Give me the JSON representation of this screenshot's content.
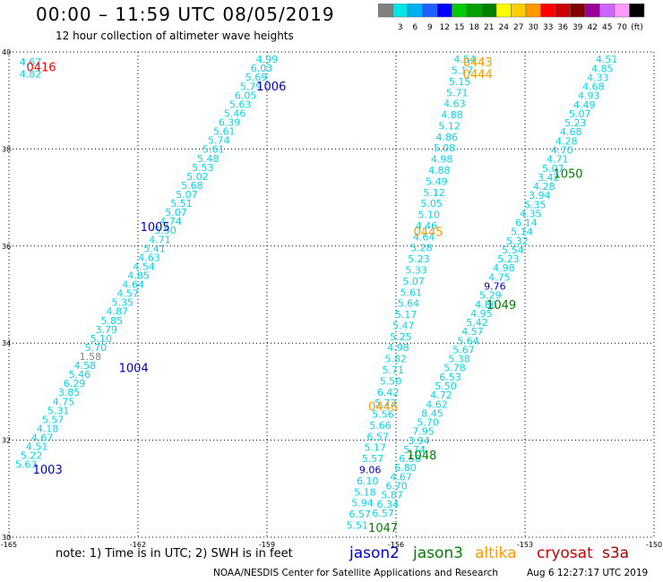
{
  "header": {
    "title": "00:00 – 11:59 UTC 08/05/2019",
    "subtitle": "12 hour collection of altimeter wave heights"
  },
  "colorbar": {
    "unit": "(ft)",
    "bins": [
      {
        "label": "",
        "color": "#808080"
      },
      {
        "label": "3",
        "color": "#00e6e6"
      },
      {
        "label": "6",
        "color": "#00b0f0"
      },
      {
        "label": "9",
        "color": "#2060ff"
      },
      {
        "label": "12",
        "color": "#0000ff"
      },
      {
        "label": "15",
        "color": "#00cc00"
      },
      {
        "label": "18",
        "color": "#00a000"
      },
      {
        "label": "21",
        "color": "#008000"
      },
      {
        "label": "24",
        "color": "#ffff00"
      },
      {
        "label": "27",
        "color": "#ffcc00"
      },
      {
        "label": "30",
        "color": "#ff9900"
      },
      {
        "label": "33",
        "color": "#ff0000"
      },
      {
        "label": "36",
        "color": "#cc0000"
      },
      {
        "label": "39",
        "color": "#800000"
      },
      {
        "label": "42",
        "color": "#990099"
      },
      {
        "label": "45",
        "color": "#cc66ff"
      },
      {
        "label": "70",
        "color": "#ff99ff"
      },
      {
        "label": "",
        "color": "#000000"
      }
    ]
  },
  "footer": {
    "note": "note:  1) Time is in UTC;  2) SWH is in feet",
    "credit": "NOAA/NESDIS Center for Satellite Applications and Research",
    "timestamp": "Aug  6 12:27:17 UTC 2019"
  },
  "satellites": [
    {
      "name": "jason2",
      "color": "#0000cc"
    },
    {
      "name": "jason3",
      "color": "#008000"
    },
    {
      "name": "altika",
      "color": "#ff9900"
    },
    {
      "name": "cryosat",
      "color": "#cc0000"
    },
    {
      "name": "s3a",
      "color": "#aa0000"
    }
  ],
  "chart_data": {
    "type": "scatter",
    "xlim": [
      -165,
      -150
    ],
    "ylim": [
      30,
      40
    ],
    "xticks": [
      "-165",
      "-162",
      "-159",
      "-156",
      "-153",
      "-150"
    ],
    "yticks": [
      "30",
      "32",
      "34",
      "36",
      "38",
      "40"
    ],
    "grid": true,
    "default_color": "#00d8e8",
    "pass_labels": [
      {
        "text": "0416",
        "color": "#ff0000",
        "lon": -164.25,
        "lat": 39.7
      },
      {
        "text": "1006",
        "color": "#0000cc",
        "lon": -158.9,
        "lat": 39.3
      },
      {
        "text": "1005",
        "color": "#0000cc",
        "lon": -161.6,
        "lat": 36.4
      },
      {
        "text": "1004",
        "color": "#0000cc",
        "lon": -162.1,
        "lat": 33.5
      },
      {
        "text": "1003",
        "color": "#0000cc",
        "lon": -164.1,
        "lat": 31.4
      },
      {
        "text": "0443",
        "color": "#ff9900",
        "lon": -154.1,
        "lat": 39.8
      },
      {
        "text": "0444",
        "color": "#ff9900",
        "lon": -154.1,
        "lat": 39.55
      },
      {
        "text": "0445",
        "color": "#ff9900",
        "lon": -155.25,
        "lat": 36.3
      },
      {
        "text": "0446",
        "color": "#ff9900",
        "lon": -156.3,
        "lat": 32.7
      },
      {
        "text": "1050",
        "color": "#008000",
        "lon": -152.0,
        "lat": 37.5
      },
      {
        "text": "1049",
        "color": "#008000",
        "lon": -153.55,
        "lat": 34.8
      },
      {
        "text": "1048",
        "color": "#008000",
        "lon": -155.4,
        "lat": 31.7
      },
      {
        "text": "1047",
        "color": "#008000",
        "lon": -156.3,
        "lat": 30.2
      }
    ],
    "tracks": [
      {
        "name": "track-1003-1006",
        "start": [
          -164.6,
          31.5
        ],
        "end": [
          -159.0,
          39.85
        ],
        "values": [
          "5.63",
          "5.22",
          "4.51",
          "4.67",
          "4.18",
          "5.57",
          "5.31",
          "4.75",
          "3.85",
          "6.29",
          "5.46",
          "4.58",
          "1.58",
          "5.70",
          "5.10",
          "3.79",
          "5.85",
          "4.87",
          "5.35",
          "4.57",
          "4.64",
          "4.85",
          "4.54",
          "4.63",
          "5.41",
          "4.71",
          "5.50",
          "4.74",
          "5.07",
          "5.51",
          "5.07",
          "5.68",
          "5.02",
          "5.53",
          "5.48",
          "5.61",
          "5.74",
          "5.61",
          "6.39",
          "5.46",
          "5.63",
          "6.05",
          "5.79",
          "5.69",
          "6.03",
          "4.99"
        ],
        "special": {
          "12": "#808080"
        }
      },
      {
        "name": "track-0416",
        "start": [
          -164.5,
          39.8
        ],
        "end": [
          -164.5,
          39.55
        ],
        "values": [
          "4.67",
          "4.82"
        ]
      },
      {
        "name": "track-1047-0443",
        "start": [
          -156.9,
          30.25
        ],
        "end": [
          -154.4,
          39.85
        ],
        "values": [
          "5.51",
          "6.57",
          "5.94",
          "5.18",
          "6.10",
          "9.06",
          "5.57",
          "5.17",
          "6.57",
          "5.66",
          "5.56",
          "5.73",
          "6.42",
          "5.50",
          "5.71",
          "5.82",
          "4.98",
          "5.25",
          "5.47",
          "5.17",
          "5.64",
          "5.61",
          "5.07",
          "5.33",
          "5.23",
          "5.28",
          "4.64",
          "4.46",
          "5.10",
          "5.05",
          "5.12",
          "5.49",
          "4.88",
          "4.98",
          "5.08",
          "4.86",
          "5.12",
          "4.88",
          "4.63",
          "5.71",
          "5.15",
          "5.17",
          "4.54"
        ],
        "special": {
          "5": "#0000cc"
        }
      },
      {
        "name": "track-1048-1050",
        "start": [
          -156.3,
          30.5
        ],
        "end": [
          -151.1,
          39.85
        ],
        "values": [
          "6.57",
          "6.34",
          "5.87",
          "6.70",
          "4.67",
          "6.80",
          "6.58",
          "5.74",
          "3.94",
          "7.95",
          "5.70",
          "8.45",
          "4.62",
          "4.72",
          "5.50",
          "6.53",
          "5.78",
          "5.38",
          "5.67",
          "5.64",
          "4.57",
          "5.42",
          "4.95",
          "4.86",
          "5.29",
          "9.76",
          "4.75",
          "4.98",
          "5.23",
          "5.54",
          "5.32",
          "5.14",
          "6.14",
          "4.35",
          "5.35",
          "3.94",
          "4.28",
          "3.42",
          "5.07",
          "4.71",
          "4.70",
          "4.28",
          "4.68",
          "5.23",
          "5.07",
          "4.49",
          "4.93",
          "4.68",
          "4.33",
          "4.85",
          "4.51"
        ],
        "special": {
          "25": "#0000cc"
        }
      }
    ]
  }
}
